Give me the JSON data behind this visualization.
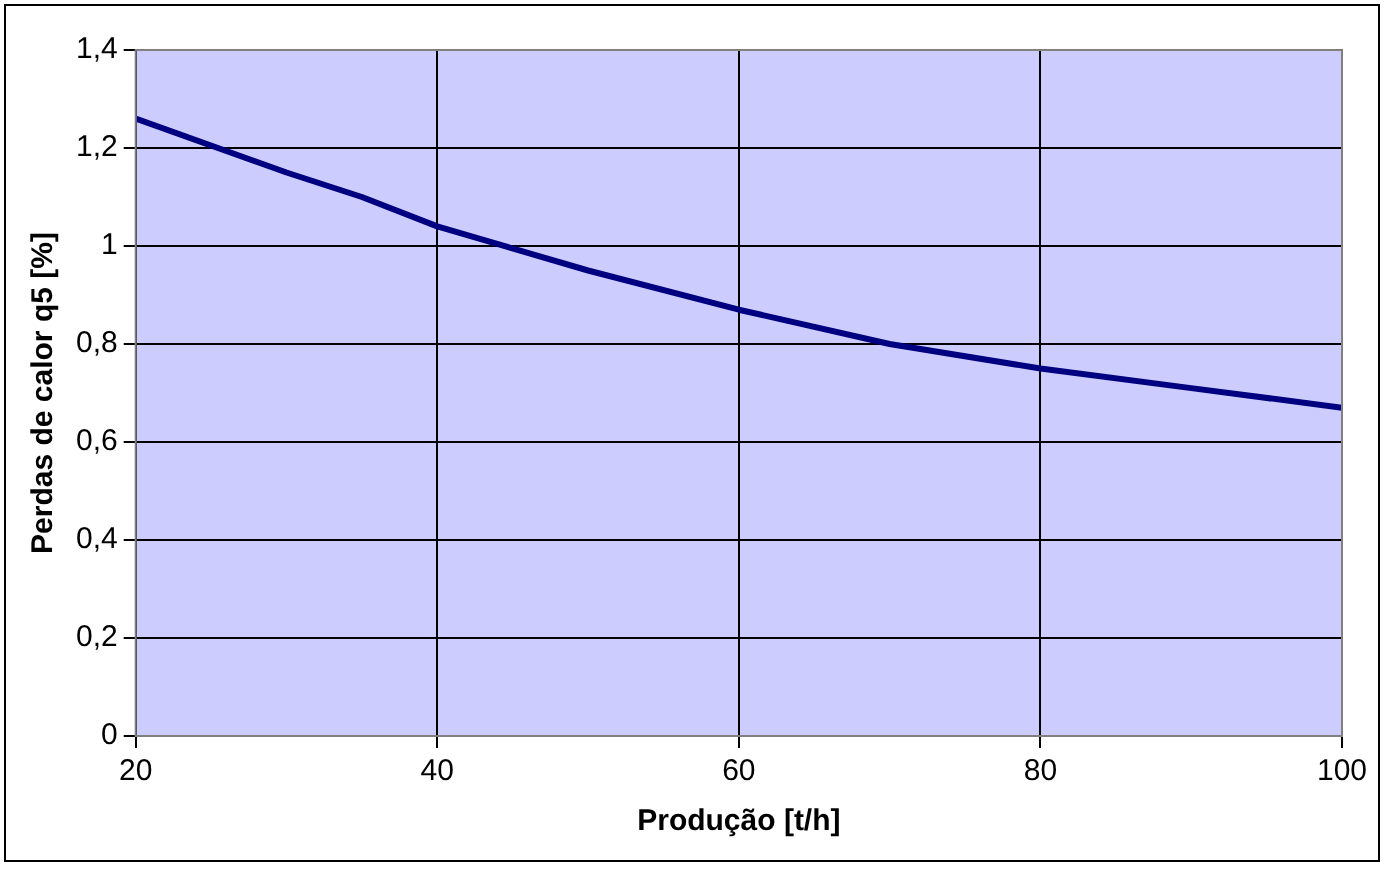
{
  "chart_data": {
    "type": "line",
    "xlabel": "Produção [t/h]",
    "ylabel": "Perdas de calor q5 [%]",
    "x": [
      20,
      30,
      35,
      40,
      50,
      60,
      70,
      80,
      90,
      100
    ],
    "series": [
      {
        "color": "#000080",
        "values": [
          1.26,
          1.15,
          1.1,
          1.04,
          0.95,
          0.87,
          0.8,
          0.75,
          0.71,
          0.67
        ]
      }
    ],
    "xlim": [
      20,
      100
    ],
    "xticks": [
      20,
      40,
      60,
      80,
      100
    ],
    "ylim": [
      0,
      1.4
    ],
    "yticks": [
      0,
      {
        "value": 0.2,
        "label": "0,2"
      },
      {
        "value": 0.4,
        "label": "0,4"
      },
      {
        "value": 0.6,
        "label": "0,6"
      },
      {
        "value": 0.8,
        "label": "0,8"
      },
      1,
      {
        "value": 1.2,
        "label": "1,2"
      },
      {
        "value": 1.4,
        "label": "1,4"
      }
    ],
    "grid": true,
    "legend": false,
    "marker": "none",
    "line_style": "solid"
  }
}
